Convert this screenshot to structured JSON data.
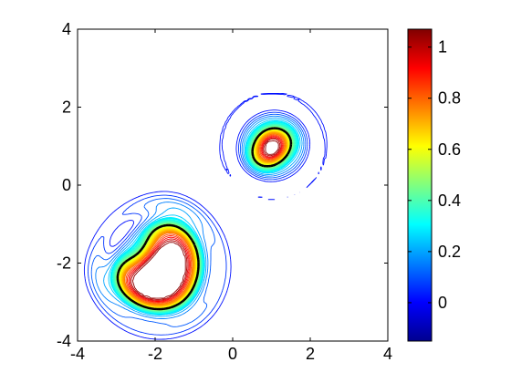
{
  "chart_data": {
    "type": "contour",
    "title": "",
    "xlabel": "",
    "ylabel": "",
    "xlim": [
      -4,
      4
    ],
    "ylim": [
      -4,
      4
    ],
    "x_ticks": [
      "-4",
      "-2",
      "0",
      "2",
      "4"
    ],
    "y_ticks": [
      "-4",
      "-2",
      "0",
      "2",
      "4"
    ],
    "colorbar": {
      "colormap": "jet",
      "range": [
        -0.15,
        1.07
      ],
      "ticks": [
        "0",
        "0.2",
        "0.4",
        "0.6",
        "0.8",
        "1"
      ],
      "tick_values": [
        0,
        0.2,
        0.4,
        0.6,
        0.8,
        1.0
      ]
    },
    "grid": false,
    "regions": [
      {
        "name": "lower-left blob",
        "center": [
          -2.1,
          -2.2
        ],
        "peak_level": 1.0
      },
      {
        "name": "upper-right blob",
        "center": [
          1.05,
          1.05
        ],
        "peak_level": 1.0
      }
    ],
    "dashed_level": 0.5,
    "contour_line_color_low": "#0000b4",
    "contour_line_color_high": "#b40000"
  }
}
